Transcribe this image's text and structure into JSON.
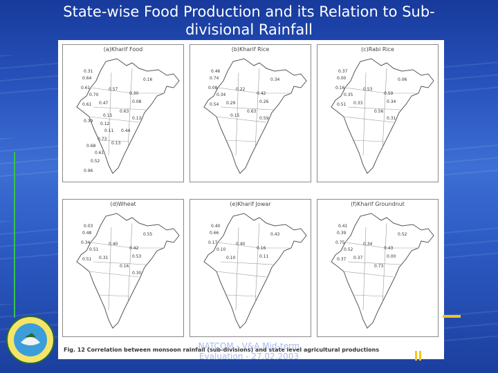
{
  "title": "State-wise Food Production and its Relation to Sub-divisional Rainfall",
  "panels": [
    {
      "title": "(a)Kharif Food",
      "values": [
        "0.31",
        "0.64",
        "0.16",
        "0.61",
        "0.57",
        "0.70",
        "0.30",
        "0.47",
        "0.08",
        "0.61",
        "0.63",
        "0.13",
        "0.15",
        "0.39",
        "0.12",
        "0.11",
        "0.44",
        "0.73",
        "0.68",
        "0.13",
        "0.61",
        "0.52",
        "0.96"
      ]
    },
    {
      "title": "(b)Kharif Rice",
      "values": [
        "0.46",
        "0.74",
        "0.34",
        "0.08",
        "0.22",
        "0.34",
        "0.42",
        "0.29",
        "0.26",
        "0.54",
        "0.63",
        "0.59",
        "0.15"
      ]
    },
    {
      "title": "(c)Rabi Rice",
      "values": [
        "0.37",
        "0.00",
        "0.06",
        "0.16",
        "0.53",
        "0.35",
        "0.59",
        "0.33",
        "0.34",
        "0.51",
        "0.56",
        "0.31"
      ]
    },
    {
      "title": "(d)Wheat",
      "values": [
        "0.03",
        "0.48",
        "0.55",
        "0.34",
        "0.40",
        "0.51",
        "0.42",
        "0.31",
        "0.53",
        "0.51",
        "0.16",
        "0.30"
      ]
    },
    {
      "title": "(e)Kharif Jowar",
      "values": [
        "0.40",
        "0.66",
        "0.43",
        "0.17",
        "0.40",
        "0.10",
        "0.16",
        "0.10",
        "0.11"
      ]
    },
    {
      "title": "(f)Kharif Groundnut",
      "values": [
        "0.41",
        "0.39",
        "0.52",
        "0.75",
        "0.34",
        "0.52",
        "0.43",
        "0.37",
        "0.00",
        "0.37",
        "0.73"
      ]
    }
  ],
  "caption": "Fig. 12  Correlation between monsoon rainfall (sub-divisions) and state level agricultural productions",
  "footer": {
    "line1": "NATCOM - V&A Mid-term",
    "line2": "Evaluation - 27.02.2003"
  },
  "colors": {
    "background": "#2a55c0",
    "accent_line": "#39c34a",
    "accent_bar": "#f2c51b"
  }
}
